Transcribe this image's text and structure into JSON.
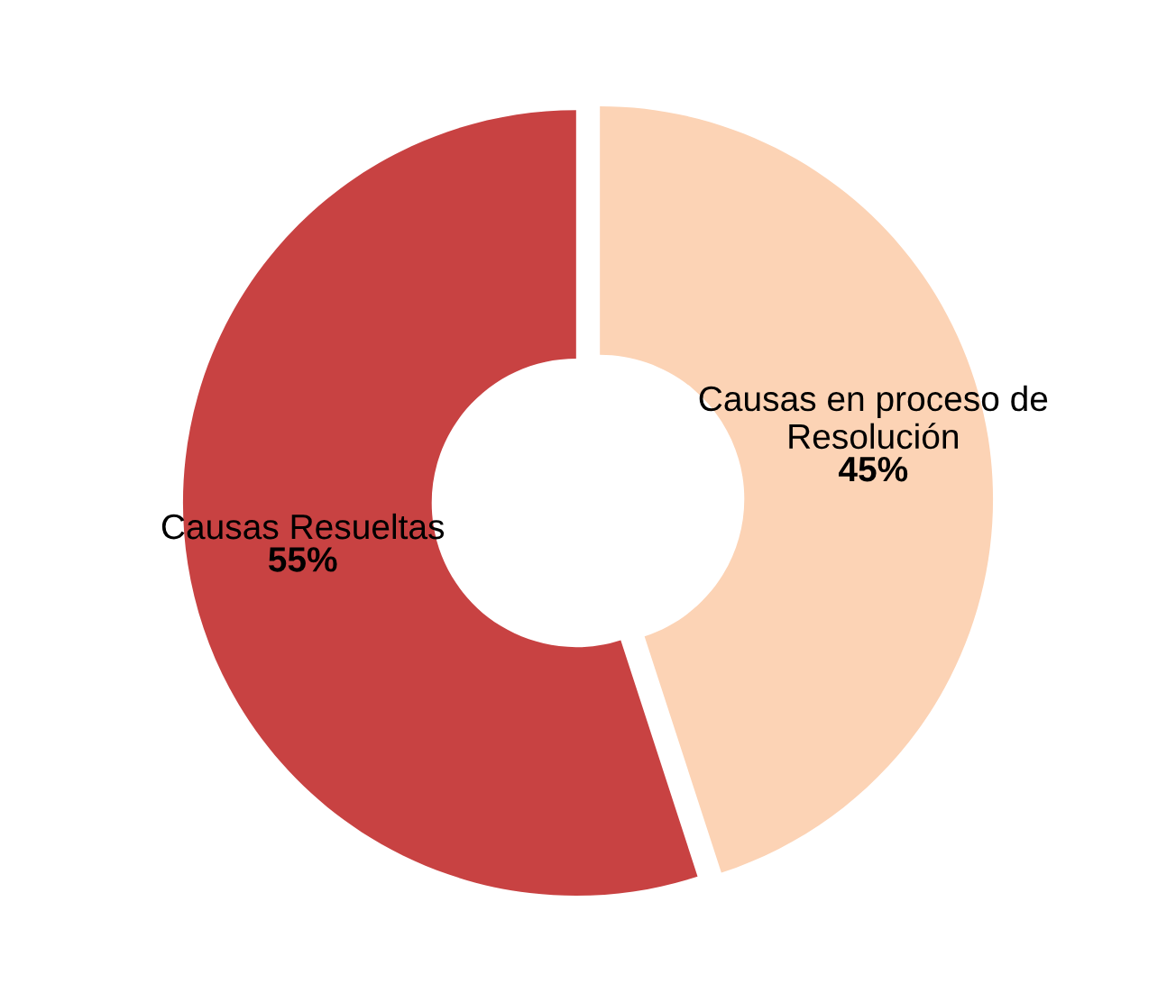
{
  "chart_data": {
    "type": "donut",
    "categories": [
      "Causas Resueltas",
      "Causas en proceso de\nResolución"
    ],
    "values": [
      55,
      45
    ],
    "value_labels": [
      "55%",
      "45%"
    ],
    "colors": [
      "#c84242",
      "#fcd3b5"
    ]
  }
}
